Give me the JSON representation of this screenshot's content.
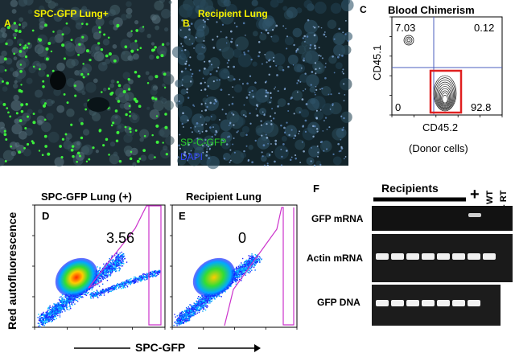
{
  "panel_a": {
    "letter": "A",
    "title": "SPC-GFP Lung+"
  },
  "panel_b": {
    "letter": "B",
    "title": "Recipient Lung",
    "legend_gfp": "SP-C-GFP",
    "legend_dapi": "DAPI"
  },
  "panel_c": {
    "letter": "C",
    "title": "Blood Chimerism",
    "y_label": "CD45.1",
    "x_label": "CD45.2",
    "x_sublabel": "(Donor cells)"
  },
  "panel_d": {
    "letter": "D",
    "title": "SPC-GFP Lung (+)"
  },
  "panel_e": {
    "letter": "E",
    "title": "Recipient Lung"
  },
  "flow_axes": {
    "y_label": "Red autofluorescence",
    "x_label": "SPC-GFP"
  },
  "panel_f": {
    "letter": "F",
    "recipients_label": "Recipients",
    "plus_label": "+",
    "wt_label": "WT",
    "rt_label": "- RT",
    "row_labels": [
      "GFP mRNA",
      "Actin mRNA",
      "GFP DNA"
    ]
  },
  "colors": {
    "title_yellow": "#f5f000",
    "gate_red": "#e02020",
    "gate_magenta": "#cc33cc",
    "quad_blue": "#4b5fbf",
    "dapi_blue": "#3344ff",
    "gfp_green": "#2bd62b"
  },
  "chart_data": [
    {
      "type": "scatter",
      "title": "Blood Chimerism",
      "xlabel": "CD45.2",
      "ylabel": "CD45.1",
      "x_scale": "log",
      "y_scale": "log",
      "xlim": [
        1,
        100000
      ],
      "ylim": [
        1,
        100000
      ],
      "x_ticks": [
        "10^0",
        "10^1",
        "10^2",
        "10^3",
        "10^4",
        "10^5"
      ],
      "y_ticks": [
        "10^0",
        "10^1",
        "10^2",
        "10^3",
        "10^4",
        "10^5"
      ],
      "quadrants": [
        {
          "position": "upper-left",
          "value": "7.03"
        },
        {
          "position": "upper-right",
          "value": "0.12"
        },
        {
          "position": "lower-left",
          "value": "0"
        },
        {
          "position": "lower-right",
          "value": "92.8"
        }
      ],
      "gate": "lower-right (red box)"
    },
    {
      "type": "scatter",
      "title": "SPC-GFP Lung (+)",
      "xlabel": "SPC-GFP",
      "ylabel": "Red autofluorescence",
      "x_scale": "log",
      "y_scale": "log",
      "xlim": [
        1,
        10000
      ],
      "ylim": [
        1,
        10000
      ],
      "x_ticks": [
        "10^0",
        "10^1",
        "10^2",
        "10^3",
        "10^4"
      ],
      "y_ticks": [
        "10^0",
        "10^1",
        "10^2",
        "10^3",
        "10^4"
      ],
      "gate_percent": "3.56"
    },
    {
      "type": "scatter",
      "title": "Recipient Lung",
      "xlabel": "SPC-GFP",
      "ylabel": "Red autofluorescence",
      "x_scale": "log",
      "y_scale": "log",
      "xlim": [
        1,
        10000
      ],
      "ylim": [
        1,
        10000
      ],
      "x_ticks": [
        "10^0",
        "10^1",
        "10^2",
        "10^3",
        "10^4"
      ],
      "y_ticks": [
        "10^0",
        "10^1",
        "10^2",
        "10^3",
        "10^4"
      ],
      "gate_percent": "0"
    }
  ]
}
